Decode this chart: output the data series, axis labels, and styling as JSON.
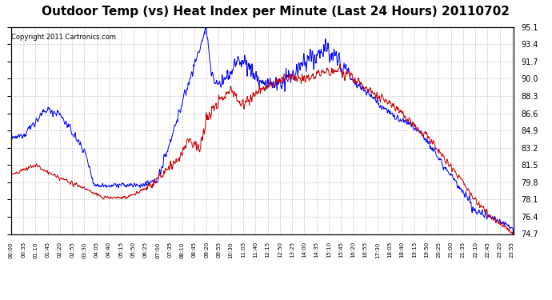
{
  "title": "Outdoor Temp (vs) Heat Index per Minute (Last 24 Hours) 20110702",
  "copyright": "Copyright 2011 Cartronics.com",
  "y_ticks": [
    74.7,
    76.4,
    78.1,
    79.8,
    81.5,
    83.2,
    84.9,
    86.6,
    88.3,
    90.0,
    91.7,
    93.4,
    95.1
  ],
  "ylim": [
    74.7,
    95.1
  ],
  "background_color": "#ffffff",
  "grid_color": "#c8c8c8",
  "blue_color": "#0000ff",
  "red_color": "#cc0000",
  "title_fontsize": 11,
  "copyright_fontsize": 6,
  "tick_step": 35
}
